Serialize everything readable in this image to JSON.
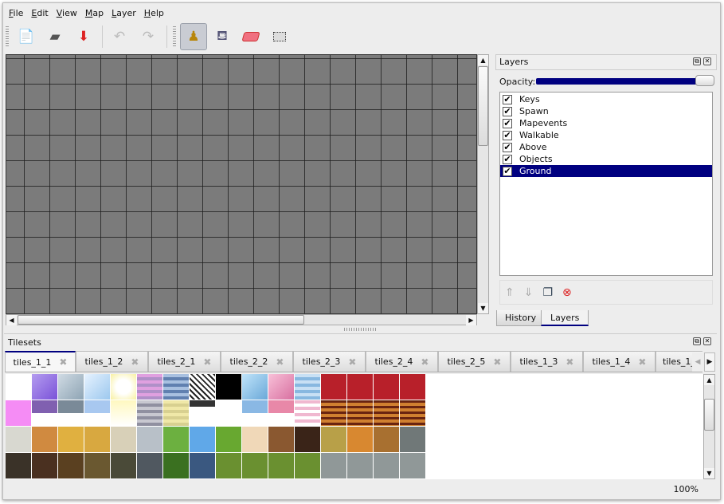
{
  "menu": [
    "File",
    "Edit",
    "View",
    "Map",
    "Layer",
    "Help"
  ],
  "toolbar": {
    "new": "new-file",
    "open": "open",
    "save": "save",
    "undo": "undo",
    "redo": "redo",
    "stamp": "stamp-brush",
    "fill": "bucket-fill",
    "eraser": "eraser",
    "select": "rect-select"
  },
  "layers_panel": {
    "title": "Layers",
    "opacity_label": "Opacity:",
    "opacity": 1.0,
    "layers": [
      {
        "name": "Keys",
        "visible": true
      },
      {
        "name": "Spawn",
        "visible": true
      },
      {
        "name": "Mapevents",
        "visible": true
      },
      {
        "name": "Walkable",
        "visible": true
      },
      {
        "name": "Above",
        "visible": true
      },
      {
        "name": "Objects",
        "visible": true
      },
      {
        "name": "Ground",
        "visible": true,
        "selected": true
      }
    ],
    "check": "✔"
  },
  "bottom_tabs": [
    "History",
    "Layers"
  ],
  "tilesets": {
    "title": "Tilesets",
    "tabs": [
      "tiles_1_1",
      "tiles_1_2",
      "tiles_2_1",
      "tiles_2_2",
      "tiles_2_3",
      "tiles_2_4",
      "tiles_2_5",
      "tiles_1_3",
      "tiles_1_4",
      "tiles_1_"
    ]
  },
  "status": {
    "zoom": "100%"
  },
  "colors": {
    "selection": "#000080",
    "canvas": "#7b7b7b"
  }
}
